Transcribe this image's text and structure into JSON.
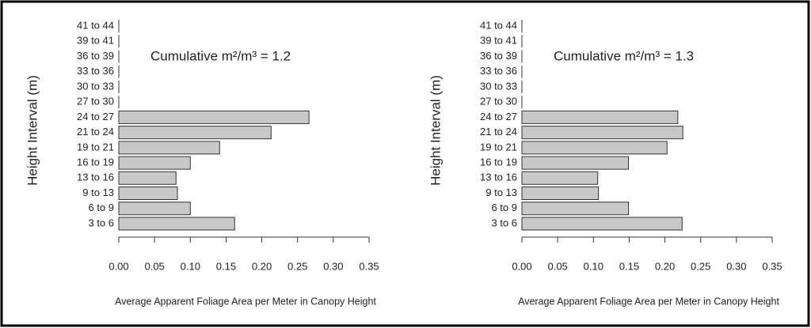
{
  "chart_data": [
    {
      "type": "barh",
      "annotation": "Cumulative m²/m³ = 1.2",
      "x_label": "Average Apparent Foliage Area per Meter in Canopy Height",
      "y_label": "Height Interval (m)",
      "categories": [
        "3 to 6",
        "6 to 9",
        "9 to 13",
        "13 to 16",
        "16 to 19",
        "19 to 21",
        "21 to 24",
        "24 to 27",
        "27 to 30",
        "30 to 33",
        "33 to 36",
        "36 to 39",
        "39 to 41",
        "41 to 44"
      ],
      "values": [
        0.162,
        0.1,
        0.082,
        0.08,
        0.1,
        0.141,
        0.213,
        0.266,
        0,
        0,
        0,
        0,
        0,
        0
      ],
      "color": "#c8c8c8",
      "xlim": [
        0,
        0.35
      ],
      "xticks": [
        {
          "value": 0,
          "label": "0.00"
        },
        0.05,
        {
          "value": 0.1,
          "label": "0.10"
        },
        0.15,
        {
          "value": 0.2,
          "label": "0.20"
        },
        0.25,
        {
          "value": 0.3,
          "label": "0.30"
        },
        0.35
      ]
    },
    {
      "type": "barh",
      "annotation": "Cumulative m²/m³ = 1.3",
      "x_label": "Average Apparent Foliage Area per Meter in Canopy Height",
      "y_label": "Height Interval (m)",
      "categories": [
        "3 to 6",
        "6 to 9",
        "9 to 13",
        "13 to 16",
        "16 to 19",
        "19 to 21",
        "21 to 24",
        "24 to 27",
        "27 to 30",
        "30 to 33",
        "33 to 36",
        "36 to 39",
        "39 to 41",
        "41 to 44"
      ],
      "values": [
        0.224,
        0.149,
        0.107,
        0.106,
        0.149,
        0.203,
        0.225,
        0.218,
        0,
        0,
        0,
        0,
        0,
        0
      ],
      "color": "#c8c8c8",
      "xlim": [
        0,
        0.35
      ],
      "xticks": [
        {
          "value": 0,
          "label": "0.00"
        },
        0.05,
        {
          "value": 0.1,
          "label": "0.10"
        },
        0.15,
        {
          "value": 0.2,
          "label": "0.20"
        },
        0.25,
        {
          "value": 0.3,
          "label": "0.30"
        },
        0.35
      ]
    }
  ]
}
